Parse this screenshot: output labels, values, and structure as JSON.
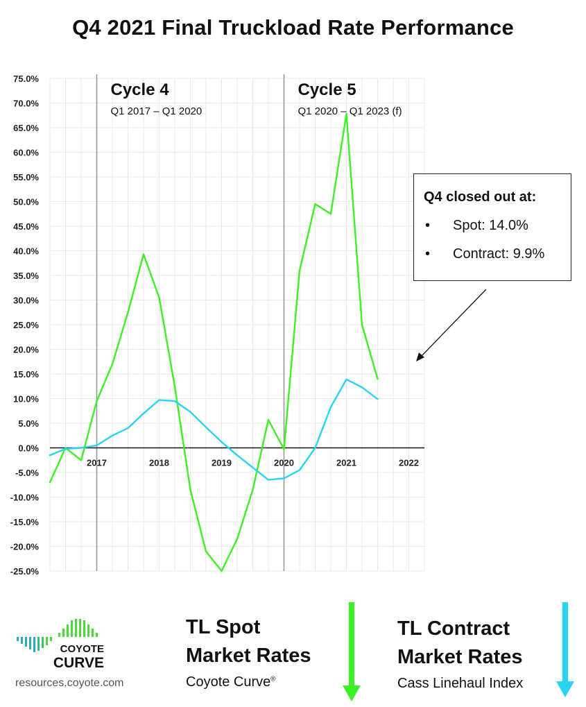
{
  "title": "Q4 2021 Final Truckload Rate Performance",
  "chart_data": {
    "type": "line",
    "title": "Q4 2021 Final Truckload Rate Performance",
    "ylim": [
      -25,
      75
    ],
    "y_ticks": [
      75,
      70,
      65,
      60,
      55,
      50,
      45,
      40,
      35,
      30,
      25,
      20,
      15,
      10,
      5,
      0,
      -5,
      -10,
      -15,
      -20,
      -25
    ],
    "y_tick_labels": [
      "75.0%",
      "70.0%",
      "65.0%",
      "60.0%",
      "55.0%",
      "50.0%",
      "45.0%",
      "40.0%",
      "35.0%",
      "30.0%",
      "25.0%",
      "20.0%",
      "15.0%",
      "10.0%",
      "5.0%",
      "0.0%",
      "-5.0%",
      "-10.0%",
      "-15.0%",
      "-20.0%",
      "-25.0%"
    ],
    "xlim": [
      2016.25,
      2022.25
    ],
    "x_tick_labels": [
      "2017",
      "2018",
      "2019",
      "2020",
      "2021",
      "2022"
    ],
    "grid": true,
    "series": [
      {
        "name": "TL Spot Market Rates",
        "color": "#3ef026",
        "x": [
          2016.25,
          2016.5,
          2016.75,
          2017.0,
          2017.25,
          2017.5,
          2017.75,
          2018.0,
          2018.25,
          2018.5,
          2018.75,
          2019.0,
          2019.25,
          2019.5,
          2019.75,
          2020.0,
          2020.25,
          2020.5,
          2020.75,
          2021.0,
          2021.25,
          2021.5,
          2021.75
        ],
        "values": [
          -7.0,
          0.0,
          -2.5,
          9.5,
          17.0,
          27.5,
          39.3,
          30.5,
          12.5,
          -8.5,
          -21.0,
          -25.0,
          -18.5,
          -8.5,
          5.7,
          -0.3,
          36.0,
          49.5,
          47.5,
          67.8,
          25.0,
          14.0,
          null
        ]
      },
      {
        "name": "TL Contract Market Rates",
        "color": "#29d3f2",
        "x": [
          2016.25,
          2016.5,
          2016.75,
          2017.0,
          2017.25,
          2017.5,
          2017.75,
          2018.0,
          2018.25,
          2018.5,
          2018.75,
          2019.0,
          2019.25,
          2019.5,
          2019.75,
          2020.0,
          2020.25,
          2020.5,
          2020.75,
          2021.0,
          2021.25,
          2021.5,
          2021.75
        ],
        "values": [
          -1.5,
          -0.2,
          0.0,
          0.5,
          2.5,
          4.0,
          7.0,
          9.7,
          9.5,
          7.3,
          4.2,
          1.2,
          -1.5,
          -4.0,
          -6.5,
          -6.2,
          -4.5,
          0.0,
          8.3,
          13.9,
          12.3,
          9.9,
          null
        ]
      }
    ],
    "annotations": [
      {
        "label": "Cycle 4",
        "sublabel": "Q1 2017 – Q1 2020"
      },
      {
        "label": "Cycle 5",
        "sublabel": "Q1 2020 – Q1 2023 (f)"
      }
    ]
  },
  "callout": {
    "heading": "Q4 closed out at:",
    "items": [
      "Spot: 14.0%",
      "Contract: 9.9%"
    ],
    "bullet": "•"
  },
  "legend": {
    "spot_title_line1": "TL Spot",
    "spot_title_line2": "Market Rates",
    "spot_subtitle": "Coyote Curve",
    "spot_subtitle_mark": "®",
    "contract_title_line1": "TL Contract",
    "contract_title_line2": "Market Rates",
    "contract_subtitle": "Cass Linehaul Index"
  },
  "logo": {
    "line1": "COYOTE",
    "line2": "CURVE"
  },
  "website": "resources.coyote.com",
  "colors": {
    "spot": "#3ef026",
    "contract": "#29d3f2",
    "logo_green": "#4cd93a",
    "logo_teal": "#29a8c8"
  }
}
